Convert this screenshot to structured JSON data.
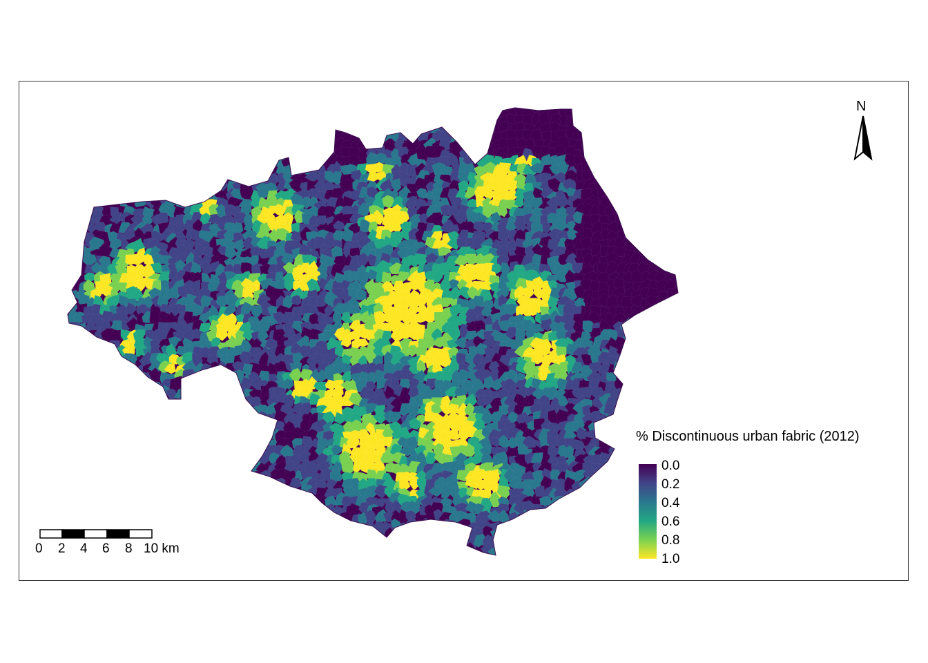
{
  "legend": {
    "title": "% Discontinuous urban fabric (2012)",
    "labels": [
      "0.0",
      "0.2",
      "0.4",
      "0.6",
      "0.8",
      "1.0"
    ],
    "colors": [
      "#440154",
      "#414487",
      "#2a788e",
      "#22a884",
      "#7ad151",
      "#fde725"
    ]
  },
  "scale_bar": {
    "labels": [
      "0",
      "2",
      "4",
      "6",
      "8",
      "10 km"
    ]
  },
  "north_arrow": {
    "label": "N"
  },
  "map": {
    "palette": "viridis",
    "background_color": "#ffffff",
    "border_color": "#333333"
  }
}
